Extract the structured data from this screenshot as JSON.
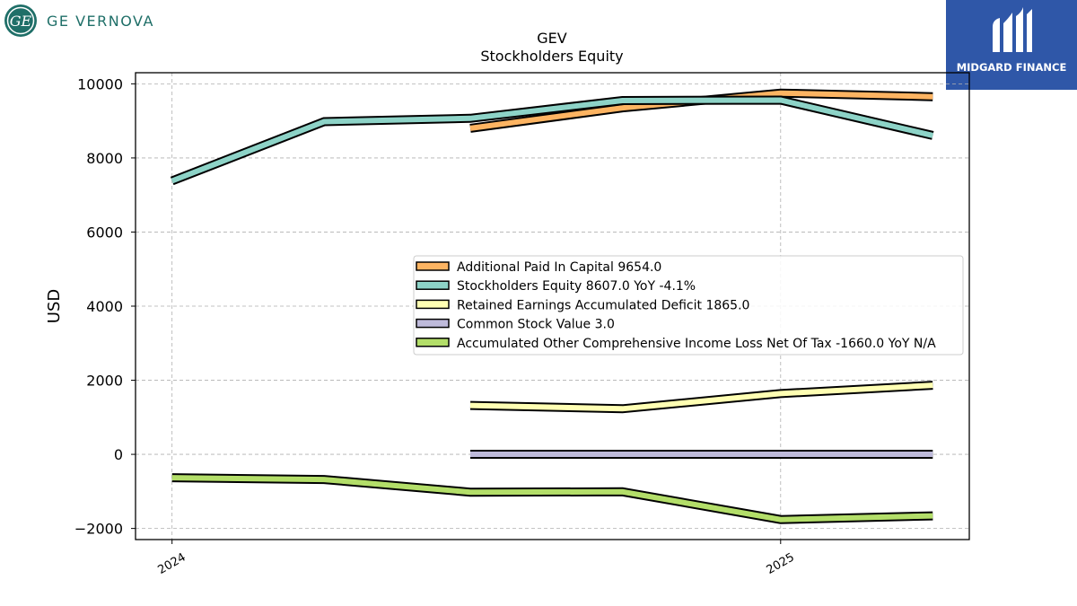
{
  "brand": {
    "left_name": "GE VERNOVA",
    "right_name": "MIDGARD FINANCE",
    "left_color": "#1f6f68",
    "right_color": "#2f57a8"
  },
  "chart_data": {
    "type": "line",
    "title": "GEV",
    "subtitle": "Stockholders  Equity",
    "ylabel": "USD",
    "xlabel": "",
    "ylim": [
      -2300,
      10300
    ],
    "xlim": [
      2023.94,
      2025.31
    ],
    "yticks": [
      -2000,
      0,
      2000,
      4000,
      6000,
      8000,
      10000
    ],
    "ytick_labels": [
      "−2000",
      "0",
      "2000",
      "4000",
      "6000",
      "8000",
      "10000"
    ],
    "xticks": [
      2024,
      2025
    ],
    "xtick_labels": [
      "2024",
      "2025"
    ],
    "grid": true,
    "legend_position": "center-right",
    "series": [
      {
        "name": "Additional Paid In Capital  9654.0",
        "color": "#fdb462",
        "x": [
          2024.49,
          2024.74,
          2025.0,
          2025.25
        ],
        "values": [
          8800,
          9350,
          9750,
          9654
        ]
      },
      {
        "name": "Stockholders Equity  8607.0 YoY -4.1%",
        "color": "#8dd3c7",
        "x": [
          2024.0,
          2024.25,
          2024.49,
          2024.74,
          2025.0,
          2025.25
        ],
        "values": [
          7380,
          8980,
          9070,
          9550,
          9560,
          8607
        ]
      },
      {
        "name": "Retained Earnings Accumulated Deficit  1865.0",
        "color": "#ffffb3",
        "x": [
          2024.49,
          2024.74,
          2025.0,
          2025.25
        ],
        "values": [
          1320,
          1230,
          1640,
          1865
        ]
      },
      {
        "name": "Common Stock Value  3.0",
        "color": "#bebada",
        "x": [
          2024.49,
          2024.74,
          2025.0,
          2025.25
        ],
        "values": [
          3,
          3,
          3,
          3
        ]
      },
      {
        "name": "Accumulated Other Comprehensive Income Loss Net Of Tax  -1660.0 YoY N/A",
        "color": "#b3de69",
        "x": [
          2024.0,
          2024.25,
          2024.49,
          2024.74,
          2025.0,
          2025.25
        ],
        "values": [
          -630,
          -680,
          -1020,
          -1010,
          -1760,
          -1660
        ]
      }
    ]
  }
}
